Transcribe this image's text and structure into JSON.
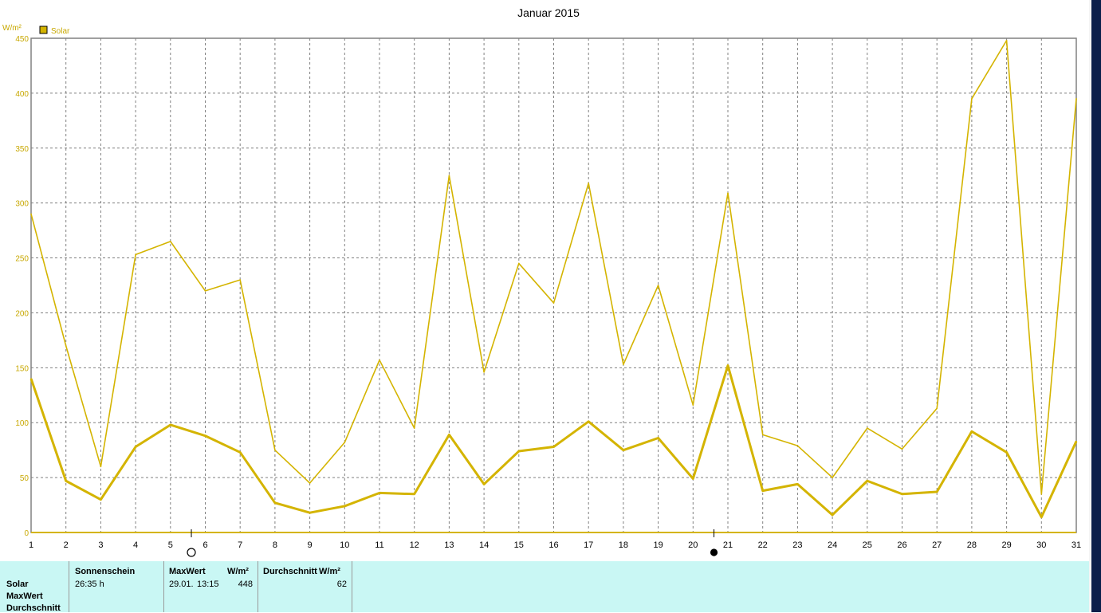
{
  "chart_data": {
    "type": "line",
    "title": "Januar 2015",
    "ylabel": "W/m²",
    "ylim": [
      0,
      450
    ],
    "yticks": [
      0,
      50,
      100,
      150,
      200,
      250,
      300,
      350,
      400,
      450
    ],
    "x": [
      1,
      2,
      3,
      4,
      5,
      6,
      7,
      8,
      9,
      10,
      11,
      12,
      13,
      14,
      15,
      16,
      17,
      18,
      19,
      20,
      21,
      22,
      23,
      24,
      25,
      26,
      27,
      28,
      29,
      30,
      31
    ],
    "grid": true,
    "legend": {
      "position": "top-left",
      "entries": [
        "Solar"
      ]
    },
    "series": [
      {
        "name": "Solar",
        "role": "max",
        "color": "#d4b400",
        "values": [
          290,
          170,
          60,
          253,
          265,
          220,
          230,
          75,
          45,
          82,
          157,
          95,
          325,
          146,
          245,
          209,
          318,
          153,
          225,
          116,
          309,
          89,
          79,
          50,
          95,
          76,
          113,
          395,
          448,
          35,
          395
        ]
      },
      {
        "name": "Solar",
        "role": "average",
        "color": "#d4b400",
        "values": [
          140,
          47,
          30,
          78,
          98,
          88,
          73,
          27,
          18,
          24,
          36,
          35,
          89,
          44,
          74,
          78,
          101,
          75,
          86,
          49,
          152,
          38,
          44,
          16,
          47,
          35,
          37,
          92,
          73,
          14,
          83
        ]
      }
    ],
    "moon_phases": [
      {
        "after_day": 5,
        "phase": "full-moon",
        "symbol": "○"
      },
      {
        "after_day": 20,
        "phase": "new-moon",
        "symbol": "●"
      }
    ]
  },
  "footer": {
    "row_labels": [
      "Solar",
      "MaxWert",
      "Durchschnitt"
    ],
    "sunshine": {
      "header": "Sonnenschein",
      "value": "26:35 h"
    },
    "max": {
      "header": "MaxWert",
      "unit": "W/m²",
      "date": "29.01.",
      "time": "13:15",
      "value": "448"
    },
    "avg": {
      "header": "Durchschnitt",
      "unit": "W/m²",
      "value": "62"
    }
  },
  "colors": {
    "series": "#d4b400",
    "footer_bg": "#c9f7f4",
    "grid": "#808080"
  }
}
